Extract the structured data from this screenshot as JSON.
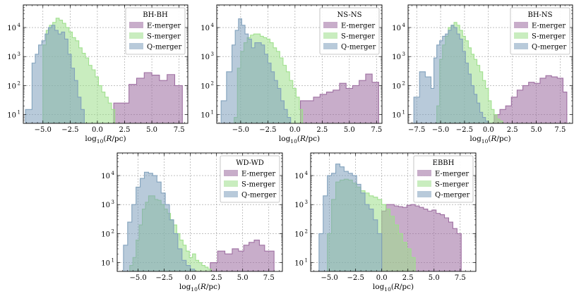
{
  "colors": {
    "E": "#9b6a9e",
    "S": "#9ddf8a",
    "Q": "#7e9fbb"
  },
  "chart_data": [
    {
      "type": "histogram",
      "title": "",
      "xlabel": "log10(R/pc)",
      "ylabel": "",
      "xlim": [
        -6.8,
        8.3
      ],
      "ylim": [
        5,
        60000
      ],
      "yscale": "log",
      "legend_title": "BH-BH",
      "legend_position": "top-right",
      "xticks": [
        -5.0,
        -2.5,
        0.0,
        2.5,
        5.0,
        7.5
      ],
      "xtick_labels": [
        "−5.0",
        "−2.5",
        "0.0",
        "2.5",
        "5.0",
        "7.5"
      ],
      "yticks": [
        10,
        100,
        1000,
        10000
      ],
      "ytick_labels": [
        "10",
        "10",
        "10",
        "10"
      ],
      "ytick_exponents": [
        "1",
        "2",
        "3",
        "4"
      ],
      "series": [
        {
          "name": "E-merger",
          "key": "E",
          "edges": [
            1.5,
            2.2,
            2.9,
            3.6,
            4.3,
            5.0,
            5.7,
            6.4,
            7.1,
            7.8
          ],
          "values": [
            25,
            25,
            110,
            180,
            280,
            230,
            150,
            240,
            100
          ]
        },
        {
          "name": "S-merger",
          "key": "S",
          "edges": [
            -5.0,
            -4.7,
            -4.4,
            -4.1,
            -3.8,
            -3.5,
            -3.2,
            -2.9,
            -2.6,
            -2.3,
            -2.0,
            -1.7,
            -1.4,
            -1.1,
            -0.8,
            -0.5,
            -0.2,
            0.1,
            0.4,
            0.7,
            1.0,
            1.3,
            1.6
          ],
          "values": [
            2500,
            8000,
            12000,
            15000,
            21000,
            18000,
            14000,
            10000,
            7000,
            4500,
            3500,
            2000,
            1300,
            900,
            500,
            350,
            200,
            100,
            60,
            40,
            25,
            15
          ]
        },
        {
          "name": "Q-merger",
          "key": "Q",
          "edges": [
            -6.6,
            -6.0,
            -5.7,
            -5.4,
            -5.1,
            -4.8,
            -4.5,
            -4.2,
            -3.9,
            -3.6,
            -3.3,
            -3.0,
            -2.7,
            -2.4,
            -2.1,
            -1.8,
            -1.5,
            -1.2
          ],
          "values": [
            15,
            600,
            1200,
            2500,
            3500,
            6000,
            10000,
            12000,
            8000,
            6000,
            7000,
            4000,
            1200,
            400,
            150,
            40,
            15
          ]
        }
      ]
    },
    {
      "type": "histogram",
      "title": "",
      "xlabel": "log10(R/pc)",
      "ylabel": "",
      "xlim": [
        -7.2,
        8.0
      ],
      "ylim": [
        5,
        60000
      ],
      "yscale": "log",
      "legend_title": "NS-NS",
      "legend_position": "top-right",
      "xticks": [
        -5.0,
        -2.5,
        0.0,
        2.5,
        5.0,
        7.5
      ],
      "xtick_labels": [
        "−5.0",
        "−2.5",
        "0.0",
        "2.5",
        "5.0",
        "7.5"
      ],
      "yticks": [
        10,
        100,
        1000,
        10000
      ],
      "ytick_labels": [
        "10",
        "10",
        "10",
        "10"
      ],
      "ytick_exponents": [
        "1",
        "2",
        "3",
        "4"
      ],
      "series": [
        {
          "name": "E-merger",
          "key": "E",
          "edges": [
            0.5,
            1.1,
            1.7,
            2.3,
            2.9,
            3.5,
            4.1,
            4.7,
            5.3,
            5.9,
            6.5,
            7.1,
            7.7
          ],
          "values": [
            30,
            30,
            40,
            50,
            60,
            70,
            120,
            80,
            100,
            150,
            250,
            130
          ]
        },
        {
          "name": "S-merger",
          "key": "S",
          "edges": [
            -5.6,
            -5.3,
            -5.0,
            -4.7,
            -4.4,
            -4.1,
            -3.8,
            -3.5,
            -3.2,
            -2.9,
            -2.6,
            -2.3,
            -2.0,
            -1.7,
            -1.4,
            -1.1,
            -0.8,
            -0.5,
            -0.2,
            0.1,
            0.4,
            0.7
          ],
          "values": [
            8,
            400,
            1500,
            3000,
            4500,
            5500,
            6000,
            6000,
            5000,
            4500,
            4000,
            3000,
            2000,
            1500,
            900,
            500,
            300,
            150,
            80,
            40,
            15
          ]
        },
        {
          "name": "Q-merger",
          "key": "Q",
          "edges": [
            -6.8,
            -6.3,
            -5.8,
            -5.5,
            -5.2,
            -4.9,
            -4.6,
            -4.3,
            -4.0,
            -3.7,
            -3.4,
            -3.1,
            -2.8,
            -2.5,
            -2.2,
            -1.9,
            -1.6,
            -1.3,
            -1.0,
            -0.7,
            -0.4
          ],
          "values": [
            30,
            300,
            2500,
            8000,
            20000,
            12000,
            6000,
            4000,
            2000,
            3000,
            3000,
            2500,
            1200,
            600,
            300,
            150,
            80,
            30,
            15,
            8
          ]
        }
      ]
    },
    {
      "type": "histogram",
      "title": "",
      "xlabel": "log10(R/pc)",
      "ylabel": "",
      "xlim": [
        -8.4,
        8.8
      ],
      "ylim": [
        5,
        60000
      ],
      "yscale": "log",
      "legend_title": "BH-NS",
      "legend_position": "top-right",
      "xticks": [
        -7.5,
        -5.0,
        -2.5,
        0.0,
        2.5,
        5.0,
        7.5
      ],
      "xtick_labels": [
        "−7.5",
        "−5.0",
        "−2.5",
        "0.0",
        "2.5",
        "5.0",
        "7.5"
      ],
      "yticks": [
        10,
        100,
        1000,
        10000
      ],
      "ytick_labels": [
        "10",
        "10",
        "10",
        "10"
      ],
      "ytick_exponents": [
        "1",
        "2",
        "3",
        "4"
      ],
      "series": [
        {
          "name": "E-merger",
          "key": "E",
          "edges": [
            0.0,
            0.6,
            1.2,
            1.8,
            2.4,
            3.0,
            3.6,
            4.2,
            4.8,
            5.4,
            6.0,
            6.6,
            7.2,
            7.8,
            8.2
          ],
          "values": [
            5,
            10,
            15,
            20,
            40,
            70,
            100,
            130,
            120,
            180,
            220,
            200,
            180,
            60
          ]
        },
        {
          "name": "S-merger",
          "key": "S",
          "edges": [
            -5.4,
            -5.1,
            -4.8,
            -4.5,
            -4.2,
            -3.9,
            -3.6,
            -3.3,
            -3.0,
            -2.7,
            -2.4,
            -2.1,
            -1.8,
            -1.5,
            -1.2,
            -0.9,
            -0.6,
            -0.3,
            0.0,
            0.3,
            0.6,
            0.9,
            1.2,
            1.5
          ],
          "values": [
            20,
            800,
            2500,
            5000,
            10000,
            12000,
            15000,
            12000,
            8000,
            5000,
            3500,
            2000,
            1200,
            800,
            500,
            300,
            150,
            80,
            30,
            15,
            10,
            7,
            6
          ]
        },
        {
          "name": "Q-merger",
          "key": "Q",
          "edges": [
            -7.8,
            -7.2,
            -6.6,
            -6.0,
            -5.7,
            -5.4,
            -5.1,
            -4.8,
            -4.5,
            -4.2,
            -3.9,
            -3.6,
            -3.3,
            -3.0,
            -2.7,
            -2.4,
            -2.1,
            -1.8,
            -1.5,
            -1.2,
            -0.9,
            -0.6,
            -0.3,
            0.0
          ],
          "values": [
            40,
            300,
            200,
            80,
            900,
            2500,
            3500,
            5000,
            6000,
            8000,
            12000,
            10000,
            6000,
            4000,
            1500,
            600,
            250,
            100,
            50,
            25,
            12,
            8,
            6
          ]
        }
      ]
    },
    {
      "type": "histogram",
      "title": "",
      "xlabel": "log10(R/pc)",
      "ylabel": "",
      "xlim": [
        -7.0,
        8.8
      ],
      "ylim": [
        5,
        60000
      ],
      "yscale": "log",
      "legend_title": "WD-WD",
      "legend_position": "top-right",
      "xticks": [
        -5.0,
        -2.5,
        0.0,
        2.5,
        5.0,
        7.5
      ],
      "xtick_labels": [
        "−5.0",
        "−2.5",
        "0.0",
        "2.5",
        "5.0",
        "7.5"
      ],
      "yticks": [
        10,
        100,
        1000,
        10000
      ],
      "ytick_labels": [
        "10",
        "10",
        "10",
        "10"
      ],
      "ytick_exponents": [
        "1",
        "2",
        "3",
        "4"
      ],
      "series": [
        {
          "name": "E-merger",
          "key": "E",
          "edges": [
            1.9,
            2.6,
            3.3,
            4.0,
            4.6,
            5.1,
            5.6,
            6.1,
            6.6,
            7.1,
            7.6,
            8.0
          ],
          "values": [
            10,
            25,
            20,
            30,
            25,
            40,
            50,
            60,
            40,
            25,
            25
          ]
        },
        {
          "name": "S-merger",
          "key": "S",
          "edges": [
            -5.8,
            -5.5,
            -5.2,
            -4.9,
            -4.6,
            -4.3,
            -4.0,
            -3.7,
            -3.4,
            -3.1,
            -2.8,
            -2.5,
            -2.2,
            -1.9,
            -1.6,
            -1.3,
            -1.0,
            -0.7,
            -0.4,
            -0.1,
            0.2,
            0.5,
            0.8,
            1.1,
            1.4,
            1.7,
            2.0
          ],
          "values": [
            8,
            15,
            60,
            200,
            700,
            1200,
            2000,
            2000,
            1500,
            1400,
            1000,
            700,
            500,
            300,
            200,
            100,
            60,
            40,
            25,
            15,
            20,
            12,
            10,
            8,
            7,
            6
          ]
        },
        {
          "name": "Q-merger",
          "key": "Q",
          "edges": [
            -6.4,
            -6.0,
            -5.6,
            -5.2,
            -4.8,
            -4.4,
            -4.0,
            -3.6,
            -3.2,
            -2.8,
            -2.4,
            -2.0,
            -1.6,
            -1.2,
            -0.8,
            -0.4,
            0.0,
            0.4
          ],
          "values": [
            40,
            250,
            1000,
            4000,
            8000,
            13000,
            12000,
            10000,
            6000,
            2500,
            1000,
            300,
            100,
            30,
            12,
            8,
            6
          ]
        }
      ]
    },
    {
      "type": "histogram",
      "title": "",
      "xlabel": "log10(R/pc)",
      "ylabel": "",
      "xlim": [
        -6.8,
        9.0
      ],
      "ylim": [
        5,
        60000
      ],
      "yscale": "log",
      "legend_title": "EBBH",
      "legend_position": "top-right",
      "xticks": [
        -5.0,
        -2.5,
        0.0,
        2.5,
        5.0,
        7.5
      ],
      "xtick_labels": [
        "−5.0",
        "−2.5",
        "0.0",
        "2.5",
        "5.0",
        "7.5"
      ],
      "yticks": [
        10,
        100,
        1000,
        10000
      ],
      "ytick_labels": [
        "10",
        "10",
        "10",
        "10"
      ],
      "ytick_exponents": [
        "1",
        "2",
        "3",
        "4"
      ],
      "series": [
        {
          "name": "E-merger",
          "key": "E",
          "edges": [
            0.0,
            0.4,
            0.8,
            1.2,
            1.6,
            2.0,
            2.4,
            2.8,
            3.2,
            3.6,
            4.0,
            4.4,
            4.8,
            5.2,
            5.6,
            6.0,
            6.4,
            6.8,
            7.2,
            7.6
          ],
          "values": [
            600,
            1000,
            1000,
            900,
            850,
            800,
            950,
            1000,
            900,
            800,
            700,
            600,
            650,
            500,
            450,
            350,
            250,
            150,
            100
          ]
        },
        {
          "name": "S-merger",
          "key": "S",
          "edges": [
            -5.2,
            -4.8,
            -4.4,
            -4.0,
            -3.6,
            -3.2,
            -2.8,
            -2.4,
            -2.0,
            -1.6,
            -1.2,
            -0.8,
            -0.4,
            0.0,
            0.4,
            0.8,
            1.2,
            1.6,
            2.0,
            2.4,
            2.8,
            3.2
          ],
          "values": [
            100,
            1500,
            6000,
            7000,
            7500,
            7000,
            5500,
            4000,
            3000,
            2500,
            2000,
            1800,
            1500,
            1000,
            700,
            400,
            200,
            100,
            50,
            30,
            15
          ]
        },
        {
          "name": "Q-merger",
          "key": "Q",
          "edges": [
            -6.0,
            -5.6,
            -5.2,
            -4.8,
            -4.4,
            -4.0,
            -3.6,
            -3.2,
            -2.8,
            -2.4,
            -2.0,
            -1.6,
            -1.2,
            -0.8,
            -0.4,
            0.0
          ],
          "values": [
            100,
            2000,
            10000,
            12000,
            25000,
            20000,
            14000,
            12000,
            10000,
            5000,
            2500,
            1000,
            700,
            300,
            100
          ]
        }
      ]
    }
  ]
}
